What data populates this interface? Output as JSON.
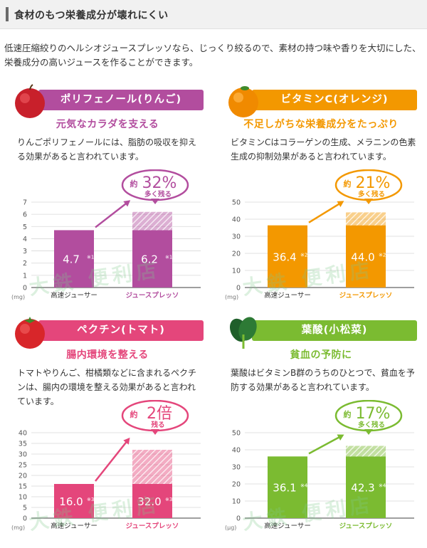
{
  "header": {
    "title": "食材のもつ栄養成分が壊れにくい"
  },
  "intro": "低速圧縮絞りのヘルシオジュースプレッソなら、じっくり絞るので、素材の持つ味や香りを大切にした、栄養成分の高いジュースを作ることができます。",
  "watermark": "大鉄 便利店",
  "colors": {
    "polyphenol": "#b24d9e",
    "vitaminc": "#f39800",
    "pectin": "#e4467b",
    "folate": "#7bbb31"
  },
  "panels": {
    "polyphenol": {
      "title": "ポリフェノール(りんご)",
      "subhead": "元気なカラダを支える",
      "desc": "りんごポリフェノールには、脂肪の吸収を抑える効果があると言われています。"
    },
    "vitaminc": {
      "title": "ビタミンC(オレンジ)",
      "subhead": "不足しがちな栄養成分をたっぷり",
      "desc": "ビタミンCはコラーゲンの生成、メラニンの色素生成の抑制効果があると言われています。"
    },
    "pectin": {
      "title": "ペクチン(トマト)",
      "subhead": "腸内環境を整える",
      "desc": "トマトやりんご、柑橘類などに含まれるペクチンは、腸内の環境を整える効果があると言われています。"
    },
    "folate": {
      "title": "葉酸(小松菜)",
      "subhead": "貧血の予防に",
      "desc": "葉酸はビタミンB群のうちのひとつで、貧血を予防する効果があると言われています。"
    }
  },
  "chart_data": [
    {
      "type": "bar",
      "key": "polyphenol",
      "categories": [
        "高速ジューサー",
        "ジュースプレッソ"
      ],
      "values": [
        4.7,
        6.2
      ],
      "notes": [
        "※1",
        "※1"
      ],
      "unit": "(mg)",
      "ylim": [
        0,
        7
      ],
      "ticks": [
        0,
        1,
        2,
        3,
        4,
        5,
        6,
        7
      ],
      "callout_prefix": "約",
      "callout_value": "32%",
      "callout_sub": "多く残る"
    },
    {
      "type": "bar",
      "key": "vitaminc",
      "categories": [
        "高速ジューサー",
        "ジュースプレッソ"
      ],
      "values": [
        36.4,
        44.0
      ],
      "notes": [
        "※2",
        "※2"
      ],
      "unit": "(mg)",
      "ylim": [
        0,
        50
      ],
      "ticks": [
        0,
        10,
        20,
        30,
        40,
        50
      ],
      "callout_prefix": "約",
      "callout_value": "21%",
      "callout_sub": "多く残る"
    },
    {
      "type": "bar",
      "key": "pectin",
      "categories": [
        "高速ジューサー",
        "ジュースプレッソ"
      ],
      "values": [
        16.0,
        32.0
      ],
      "notes": [
        "※3",
        "※3"
      ],
      "unit": "(mg)",
      "ylim": [
        0,
        40
      ],
      "ticks": [
        0,
        5,
        10,
        15,
        20,
        25,
        30,
        35,
        40
      ],
      "callout_prefix": "約",
      "callout_value": "2倍",
      "callout_sub": "残る"
    },
    {
      "type": "bar",
      "key": "folate",
      "categories": [
        "高速ジューサー",
        "ジュースプレッソ"
      ],
      "values": [
        36.1,
        42.3
      ],
      "notes": [
        "※4",
        "※4"
      ],
      "unit": "(μg)",
      "ylim": [
        0,
        50
      ],
      "ticks": [
        0,
        10,
        20,
        30,
        40,
        50
      ],
      "callout_prefix": "約",
      "callout_value": "17%",
      "callout_sub": "多く残る"
    }
  ]
}
